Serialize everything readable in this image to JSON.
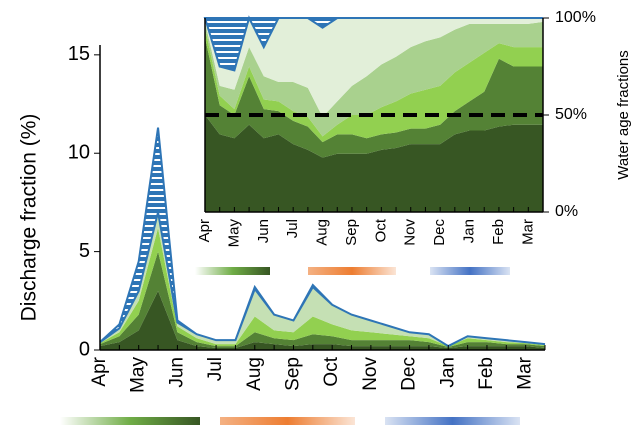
{
  "chart_data": [
    {
      "type": "stacked-area",
      "ylabel": "Discharge fraction (%)",
      "categories": [
        "Apr",
        null,
        "May",
        null,
        "Jun",
        null,
        "Jul",
        null,
        "Aug",
        null,
        "Sep",
        null,
        "Oct",
        null,
        "Nov",
        null,
        "Dec",
        null,
        "Jan",
        null,
        "Feb",
        null,
        "Mar",
        null
      ],
      "ylim": [
        0,
        15.5
      ],
      "yticks": [
        0,
        5,
        10,
        15
      ],
      "series": [
        {
          "color": "#375623",
          "values": [
            0.2,
            0.4,
            1.0,
            3.0,
            0.5,
            0.2,
            0.1,
            0.1,
            0.4,
            0.3,
            0.2,
            0.3,
            0.3,
            0.2,
            0.2,
            0.2,
            0.2,
            0.2,
            0.1,
            0.2,
            0.2,
            0.2,
            0.2,
            0.1
          ]
        },
        {
          "color": "#548235",
          "values": [
            0.1,
            0.3,
            0.8,
            2.0,
            0.4,
            0.2,
            0.1,
            0.1,
            0.5,
            0.3,
            0.3,
            0.5,
            0.4,
            0.3,
            0.3,
            0.3,
            0.3,
            0.2,
            0.05,
            0.2,
            0.2,
            0.1,
            0.1,
            0.1
          ]
        },
        {
          "color": "#92d050",
          "values": [
            0.05,
            0.2,
            0.7,
            1.2,
            0.3,
            0.2,
            0.1,
            0.1,
            0.8,
            0.4,
            0.4,
            0.9,
            0.6,
            0.5,
            0.4,
            0.3,
            0.2,
            0.2,
            0.05,
            0.2,
            0.1,
            0.1,
            0.05,
            0.05
          ]
        },
        {
          "color": "#c5e0b4",
          "values": [
            0.05,
            0.2,
            0.5,
            0.8,
            0.2,
            0.2,
            0.2,
            0.2,
            1.4,
            0.8,
            0.6,
            1.5,
            1.0,
            0.8,
            0.6,
            0.4,
            0.2,
            0.2,
            0,
            0.1,
            0.1,
            0.1,
            0.05,
            0.05
          ]
        },
        {
          "color": "#2e75b6",
          "hatch": true,
          "values": [
            0,
            0.2,
            1.5,
            4.3,
            0.1,
            0,
            0,
            0,
            0.1,
            0,
            0,
            0.1,
            0,
            0,
            0,
            0,
            0,
            0,
            0,
            0,
            0,
            0,
            0,
            0
          ]
        }
      ]
    },
    {
      "type": "stacked-area",
      "ylabel": "Water age fractions",
      "y_axis_side": "right",
      "categories": [
        "Apr",
        null,
        "May",
        null,
        "Jun",
        null,
        "Jul",
        null,
        "Aug",
        null,
        "Sep",
        null,
        "Oct",
        null,
        "Nov",
        null,
        "Dec",
        null,
        "Jan",
        null,
        "Feb",
        null,
        "Mar",
        null
      ],
      "ylim": [
        0,
        100
      ],
      "yticks": [
        {
          "value": 0,
          "label": "0%"
        },
        {
          "value": 50,
          "label": "50%"
        },
        {
          "value": 100,
          "label": "100%"
        }
      ],
      "hline": 50,
      "series": [
        {
          "color": "#375623",
          "values": [
            50,
            40,
            38,
            45,
            38,
            40,
            35,
            32,
            28,
            30,
            30,
            30,
            32,
            33,
            35,
            35,
            35,
            40,
            42,
            42,
            44,
            45,
            45,
            45
          ]
        },
        {
          "color": "#548235",
          "values": [
            40,
            15,
            12,
            25,
            15,
            12,
            12,
            12,
            8,
            10,
            10,
            8,
            8,
            8,
            8,
            8,
            10,
            12,
            15,
            20,
            35,
            30,
            30,
            30
          ]
        },
        {
          "color": "#92d050",
          "values": [
            5,
            5,
            3,
            5,
            5,
            5,
            5,
            5,
            3,
            5,
            10,
            12,
            14,
            16,
            18,
            20,
            20,
            20,
            20,
            20,
            8,
            10,
            10,
            10
          ]
        },
        {
          "color": "#a9d18e",
          "values": [
            3,
            5,
            10,
            10,
            12,
            10,
            15,
            15,
            10,
            12,
            15,
            20,
            22,
            23,
            24,
            25,
            25,
            22,
            20,
            15,
            10,
            12,
            12,
            13
          ]
        },
        {
          "color": "#e2efd9",
          "values": [
            2,
            10,
            10,
            15,
            15,
            33,
            33,
            36,
            46,
            43,
            35,
            30,
            24,
            20,
            15,
            12,
            10,
            6,
            3,
            3,
            3,
            3,
            3,
            2
          ]
        },
        {
          "color": "#2e75b6",
          "hatch": true,
          "values": [
            0,
            25,
            27,
            0,
            15,
            0,
            0,
            0,
            5,
            0,
            0,
            0,
            0,
            0,
            0,
            0,
            0,
            0,
            0,
            0,
            0,
            0,
            0,
            0
          ]
        }
      ]
    }
  ]
}
